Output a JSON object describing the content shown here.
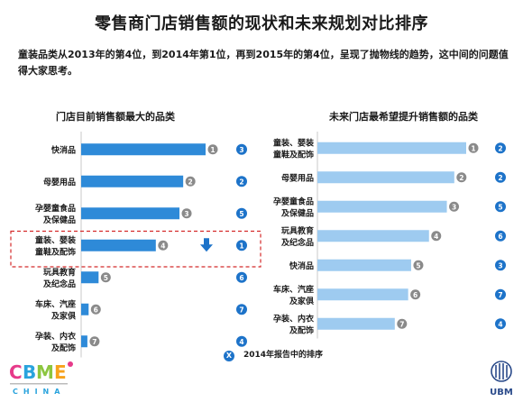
{
  "title": "零售商门店销售额的现状和未来规划对比排序",
  "subtitle": "童装品类从2013年的第4位，到2014年第1位，再到2015年的第4位，呈现了抛物线的趋势，这中间的问题值得大家思考。",
  "legend": {
    "badge": "X",
    "text": "2014年报告中的排序"
  },
  "logos": {
    "left_brand": "CBME",
    "left_sub": "CHINA",
    "right_brand": "UBM"
  },
  "colors": {
    "bar": "#9ecbf0",
    "bar_dark": "#2e8ad8",
    "badge_blue": "#1d73c9",
    "badge_grey": "#8a8a8a",
    "highlight_border": "#d42a2a",
    "arrow": "#1d73c9"
  },
  "chart_data": [
    {
      "type": "bar",
      "orientation": "horizontal",
      "title": "门店目前销售额最大的品类",
      "categories": [
        [
          "快消品"
        ],
        [
          "母婴用品"
        ],
        [
          "孕婴童食品",
          "及保健品"
        ],
        [
          "童装、婴装",
          "童鞋及配饰"
        ],
        [
          "玩具教育",
          "及纪念品"
        ],
        [
          "车床、汽座",
          "及家俱"
        ],
        [
          "孕装、内衣",
          "及配饰"
        ]
      ],
      "current_rank": [
        1,
        2,
        3,
        4,
        5,
        6,
        7
      ],
      "rank_2014": [
        3,
        2,
        5,
        1,
        6,
        7,
        4
      ],
      "values": [
        100,
        82,
        79,
        60,
        14,
        6,
        5
      ],
      "highlighted_category": 3,
      "highlight_arrow": "down",
      "bar_color": "#2e8ad8"
    },
    {
      "type": "bar",
      "orientation": "horizontal",
      "title": "未来门店最希望提升销售额的品类",
      "categories": [
        [
          "童装、婴装",
          "童鞋及配饰"
        ],
        [
          "母婴用品"
        ],
        [
          "孕婴童食品",
          "及保健品"
        ],
        [
          "玩具教育",
          "及纪念品"
        ],
        [
          "快消品"
        ],
        [
          "车床、汽座",
          "及家俱"
        ],
        [
          "孕装、内衣",
          "及配饰"
        ]
      ],
      "current_rank": [
        1,
        2,
        3,
        4,
        5,
        6,
        7
      ],
      "rank_2014": [
        2,
        2,
        5,
        6,
        3,
        7,
        4
      ],
      "values": [
        100,
        92,
        87,
        75,
        63,
        61,
        52
      ],
      "bar_color": "#9ecbf0"
    }
  ]
}
